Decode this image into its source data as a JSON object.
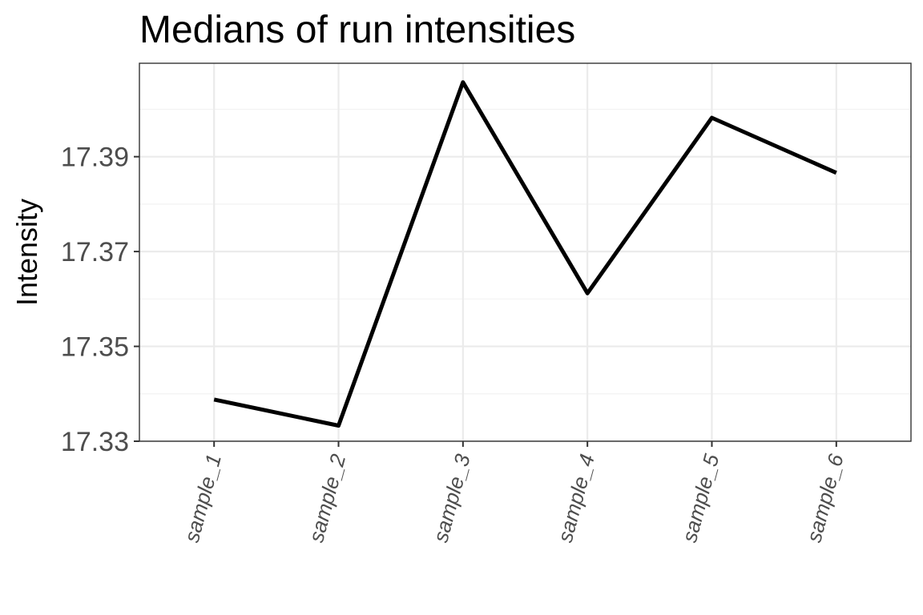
{
  "chart_data": {
    "type": "line",
    "title": "Medians of run intensities",
    "xlabel": "",
    "ylabel": "Intensity",
    "categories": [
      "sample_1",
      "sample_2",
      "sample_3",
      "sample_4",
      "sample_5",
      "sample_6"
    ],
    "series": [
      {
        "values": [
          17.3388,
          17.3333,
          17.4057,
          17.3612,
          17.3982,
          17.3866
        ]
      }
    ],
    "ylim": [
      17.33,
      17.4097
    ],
    "yticks": [
      17.33,
      17.35,
      17.37,
      17.39
    ],
    "ytick_labels": [
      "17.33",
      "17.35",
      "17.37",
      "17.39"
    ],
    "grid": true,
    "legend": "none",
    "line_color": "#000000"
  }
}
